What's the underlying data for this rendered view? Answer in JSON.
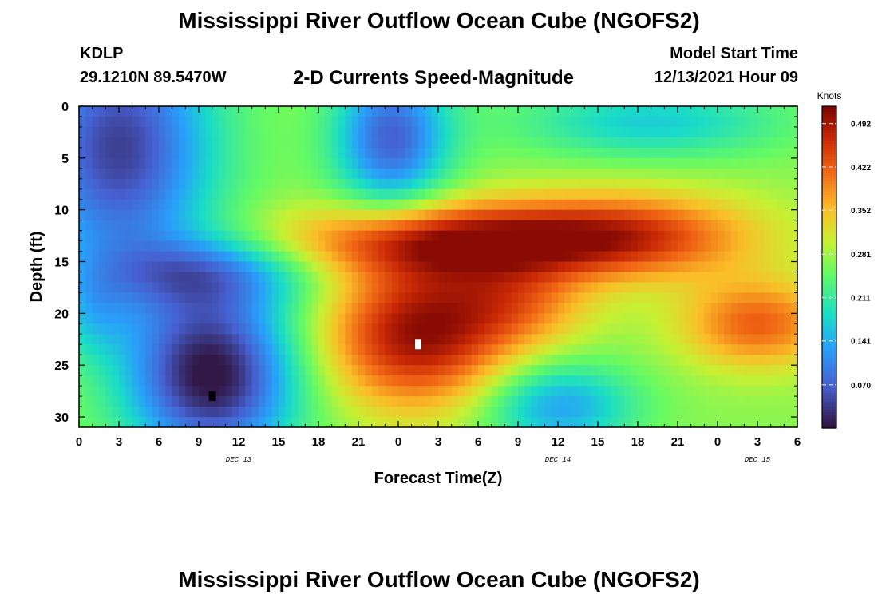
{
  "header": {
    "title": "Mississippi River Outflow Ocean Cube (NGOFS2)",
    "station": "KDLP",
    "coordinates": "29.1210N  89.5470W",
    "subtitle": "2-D Currents Speed-Magnitude",
    "model_start_label": "Model Start Time",
    "model_start_value": "12/13/2021 Hour 09"
  },
  "footer": {
    "title": "Mississippi River Outflow Ocean Cube (NGOFS2)"
  },
  "chart_data": {
    "type": "heatmap",
    "title": "2-D Currents Speed-Magnitude",
    "xlabel": "Forecast Time(Z)",
    "ylabel": "Depth (ft)",
    "x_range_hours": [
      0,
      54
    ],
    "x_tick_labels": [
      "0",
      "3",
      "6",
      "9",
      "12",
      "15",
      "18",
      "21",
      "0",
      "3",
      "6",
      "9",
      "12",
      "15",
      "18",
      "21",
      "0",
      "3",
      "6"
    ],
    "date_labels": [
      {
        "label": "DEC 13",
        "hour": 12
      },
      {
        "label": "DEC 14",
        "hour": 36
      },
      {
        "label": "DEC 15",
        "hour": 51
      }
    ],
    "y_range_ft": [
      0,
      31
    ],
    "y_ticks": [
      0,
      5,
      10,
      15,
      20,
      25,
      30
    ],
    "colorbar": {
      "unit_label": "Knots",
      "min": 0.0,
      "max": 0.52,
      "tick_labels": [
        "0.492",
        "0.422",
        "0.352",
        "0.281",
        "0.211",
        "0.141",
        "0.070"
      ]
    },
    "features": [
      {
        "name": "low-surface-morning",
        "hour": 3,
        "depth": 3,
        "speed": 0.05
      },
      {
        "name": "low-surface-dec14",
        "hour": 23,
        "depth": 3,
        "speed": 0.08
      },
      {
        "name": "low-bottom-dec13",
        "hour": 10,
        "depth": 28,
        "speed": 0.02
      },
      {
        "name": "mid-layer-jet",
        "hour": 30,
        "depth": 13,
        "speed": 0.44
      },
      {
        "name": "max-core",
        "hour": 25.5,
        "depth": 23,
        "speed": 0.5
      },
      {
        "name": "evening-core",
        "hour": 51,
        "depth": 21,
        "speed": 0.46
      },
      {
        "name": "bottom-low-dec14",
        "hour": 36,
        "depth": 29,
        "speed": 0.15
      }
    ],
    "markers": [
      {
        "name": "max-marker",
        "hour": 25.5,
        "depth": 23,
        "color": "#ffffff"
      },
      {
        "name": "min-marker",
        "hour": 10,
        "depth": 28,
        "color": "#000000"
      }
    ]
  }
}
